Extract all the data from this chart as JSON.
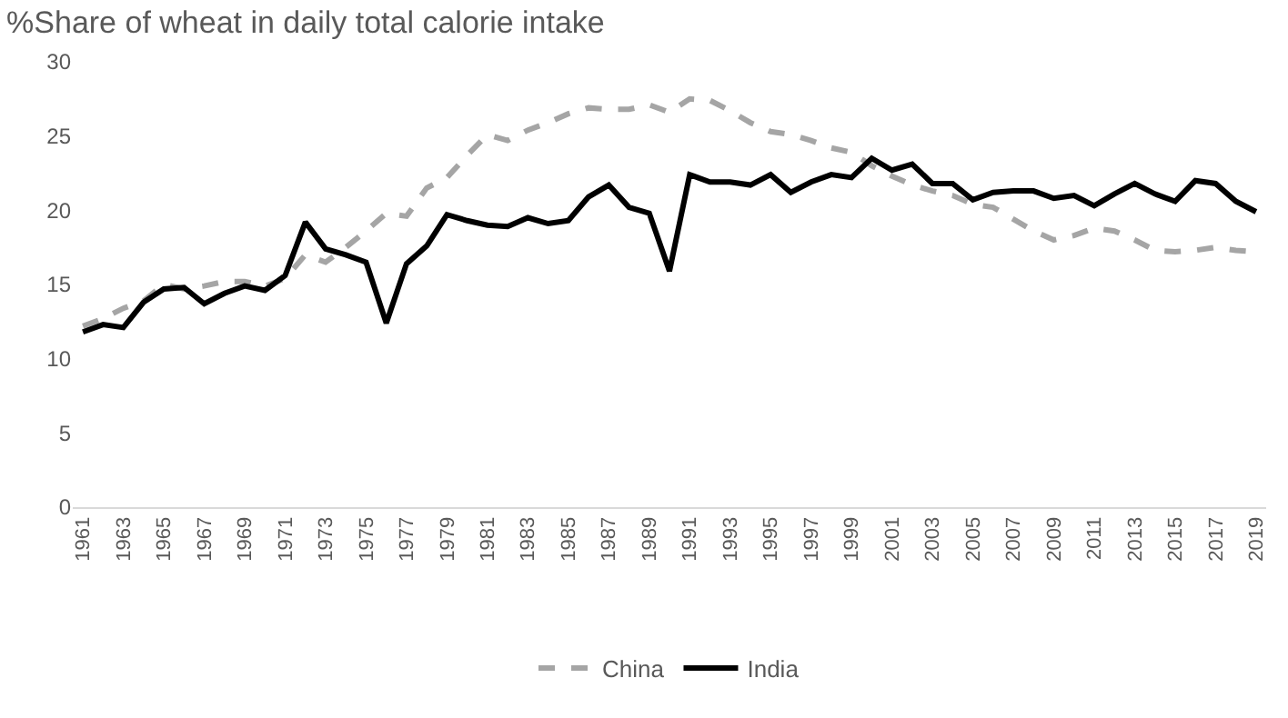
{
  "chart_data": {
    "type": "line",
    "title": "%Share of wheat in daily total calorie intake",
    "x": [
      1961,
      1962,
      1963,
      1964,
      1965,
      1966,
      1967,
      1968,
      1969,
      1970,
      1971,
      1972,
      1973,
      1974,
      1975,
      1976,
      1977,
      1978,
      1979,
      1980,
      1981,
      1982,
      1983,
      1984,
      1985,
      1986,
      1987,
      1988,
      1989,
      1990,
      1991,
      1992,
      1993,
      1994,
      1995,
      1996,
      1997,
      1998,
      1999,
      2000,
      2001,
      2002,
      2003,
      2004,
      2005,
      2006,
      2007,
      2008,
      2009,
      2010,
      2011,
      2012,
      2013,
      2014,
      2015,
      2016,
      2017,
      2018,
      2019
    ],
    "series": [
      {
        "name": "China",
        "color": "#a5a5a5",
        "line_style": "dashed",
        "values": [
          12.2,
          12.7,
          13.4,
          13.9,
          15.0,
          14.7,
          14.9,
          15.2,
          15.2,
          14.9,
          15.4,
          17.0,
          16.5,
          17.5,
          18.6,
          19.8,
          19.6,
          21.5,
          22.2,
          23.7,
          25.1,
          24.7,
          25.4,
          25.9,
          26.5,
          26.9,
          26.8,
          26.8,
          27.1,
          26.6,
          27.5,
          27.4,
          26.7,
          25.9,
          25.3,
          25.1,
          24.7,
          24.2,
          23.9,
          23.0,
          22.3,
          21.7,
          21.3,
          21.0,
          20.4,
          20.2,
          19.4,
          18.6,
          18.0,
          18.3,
          18.8,
          18.6,
          18.0,
          17.3,
          17.2,
          17.3,
          17.5,
          17.3,
          17.2
        ]
      },
      {
        "name": "India",
        "color": "#000000",
        "line_style": "solid",
        "values": [
          11.8,
          12.3,
          12.1,
          13.8,
          14.7,
          14.8,
          13.7,
          14.4,
          14.9,
          14.6,
          15.6,
          19.2,
          17.4,
          17.0,
          16.5,
          12.4,
          16.4,
          17.6,
          19.7,
          19.3,
          19.0,
          18.9,
          19.5,
          19.1,
          19.3,
          20.9,
          21.7,
          20.2,
          19.8,
          15.9,
          22.4,
          21.9,
          21.9,
          21.7,
          22.4,
          21.2,
          21.9,
          22.4,
          22.2,
          23.5,
          22.7,
          23.1,
          21.8,
          21.8,
          20.7,
          21.2,
          21.3,
          21.3,
          20.8,
          21.0,
          20.3,
          21.1,
          21.8,
          21.1,
          20.6,
          22.0,
          21.8,
          20.6,
          19.9
        ]
      }
    ],
    "xlim": [
      1960.5,
      2019.5
    ],
    "xticks": [
      1961,
      1963,
      1965,
      1967,
      1969,
      1971,
      1973,
      1975,
      1977,
      1979,
      1981,
      1983,
      1985,
      1987,
      1989,
      1991,
      1993,
      1995,
      1997,
      1999,
      2001,
      2003,
      2005,
      2007,
      2009,
      2011,
      2013,
      2015,
      2017,
      2019
    ],
    "ylim": [
      0,
      30
    ],
    "yticks": [
      0,
      5,
      10,
      15,
      20,
      25,
      30
    ],
    "grid": false,
    "legend": "bottom",
    "marker": "none"
  }
}
